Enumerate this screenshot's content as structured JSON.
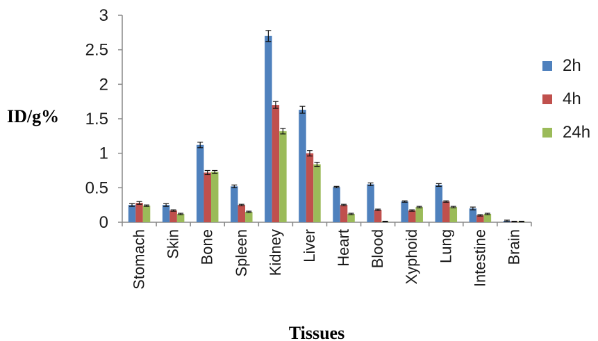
{
  "chart_data": {
    "type": "bar",
    "title": "",
    "xlabel": "Tissues",
    "ylabel": "ID/g%",
    "ylim": [
      0,
      3
    ],
    "yticks": [
      0,
      0.5,
      1,
      1.5,
      2,
      2.5,
      3
    ],
    "ytick_labels": [
      "0",
      "0.5",
      "1",
      "1.5",
      "2",
      "2.5",
      "3"
    ],
    "grid": false,
    "legend_position": "right",
    "categories": [
      "Stomach",
      "Skin",
      "Bone",
      "Spleen",
      "Kidney",
      "Liver",
      "Heart",
      "Blood",
      "Xyphoid",
      "Lung",
      "Intestine",
      "Brain"
    ],
    "series": [
      {
        "name": "2h",
        "color": "#4f81bd",
        "values": [
          0.25,
          0.25,
          1.12,
          0.52,
          2.7,
          1.63,
          0.51,
          0.55,
          0.3,
          0.54,
          0.2,
          0.02
        ],
        "errors": [
          0.02,
          0.02,
          0.04,
          0.02,
          0.08,
          0.05,
          0.01,
          0.02,
          0.01,
          0.02,
          0.02,
          0.01
        ]
      },
      {
        "name": "4h",
        "color": "#c0504d",
        "values": [
          0.28,
          0.17,
          0.72,
          0.25,
          1.7,
          1.0,
          0.25,
          0.18,
          0.17,
          0.3,
          0.1,
          0.01
        ],
        "errors": [
          0.02,
          0.01,
          0.03,
          0.01,
          0.05,
          0.04,
          0.01,
          0.01,
          0.01,
          0.01,
          0.01,
          0.005
        ]
      },
      {
        "name": "24h",
        "color": "#9bbb59",
        "values": [
          0.24,
          0.12,
          0.73,
          0.15,
          1.32,
          0.84,
          0.12,
          0.01,
          0.22,
          0.22,
          0.12,
          0.01
        ],
        "errors": [
          0.01,
          0.01,
          0.02,
          0.01,
          0.04,
          0.03,
          0.01,
          0.005,
          0.01,
          0.01,
          0.01,
          0.005
        ]
      }
    ]
  }
}
